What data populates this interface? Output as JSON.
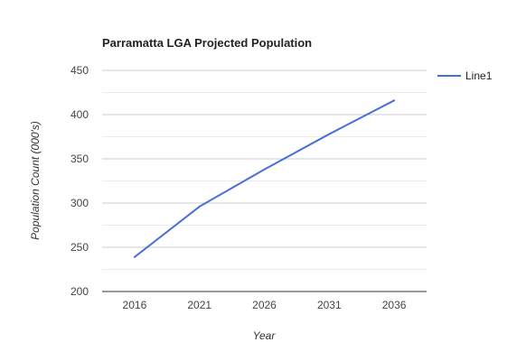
{
  "chart_data": {
    "type": "line",
    "title": "Parramatta LGA Projected Population",
    "xlabel": "Year",
    "ylabel": "Population Count (000's)",
    "categories": [
      "2016",
      "2021",
      "2026",
      "2031",
      "2036"
    ],
    "series": [
      {
        "name": "Line1",
        "color": "#4a6fd8",
        "values": [
          239,
          296,
          338,
          378,
          416
        ]
      }
    ],
    "ylim": [
      200,
      450
    ],
    "yticks": [
      200,
      250,
      300,
      350,
      400,
      450
    ],
    "grid": true,
    "legend_position": "right"
  }
}
